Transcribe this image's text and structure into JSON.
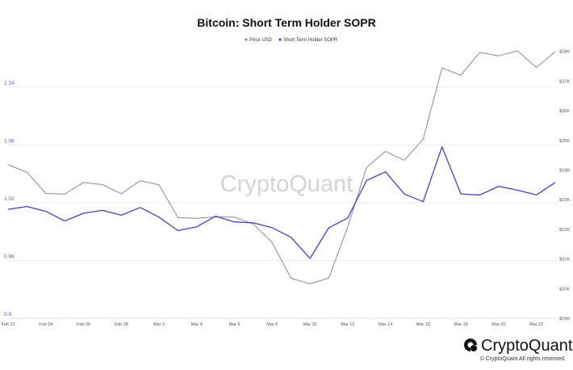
{
  "chart_data": {
    "type": "line",
    "title": "Bitcoin: Short Term Holder SOPR",
    "x_labels": [
      "Feb 22",
      "Feb 24",
      "Feb 26",
      "Feb 28",
      "Mar 2",
      "Mar 4",
      "Mar 6",
      "Mar 8",
      "Mar 10",
      "Mar 12",
      "Mar 14",
      "Mar 16",
      "Mar 18",
      "Mar 20",
      "Mar 22"
    ],
    "x": [
      "Feb 22",
      "Feb 23",
      "Feb 24",
      "Feb 25",
      "Feb 26",
      "Feb 27",
      "Feb 28",
      "Mar 1",
      "Mar 2",
      "Mar 3",
      "Mar 4",
      "Mar 5",
      "Mar 6",
      "Mar 7",
      "Mar 8",
      "Mar 9",
      "Mar 10",
      "Mar 11",
      "Mar 12",
      "Mar 13",
      "Mar 14",
      "Mar 15",
      "Mar 16",
      "Mar 17",
      "Mar 18",
      "Mar 19",
      "Mar 20",
      "Mar 21",
      "Mar 22",
      "Mar 23"
    ],
    "series": [
      {
        "name": "Price USD",
        "axis": "right",
        "color": "#8a8a8a",
        "values": [
          24180,
          23930,
          23210,
          23190,
          23580,
          23510,
          23200,
          23640,
          23500,
          22400,
          22370,
          22420,
          22410,
          22180,
          21550,
          20350,
          20160,
          20360,
          22080,
          24090,
          24630,
          24330,
          25040,
          27440,
          27200,
          27970,
          27850,
          28020,
          27460,
          27990
        ]
      },
      {
        "name": "Short Term Holder SOPR",
        "axis": "left",
        "color": "#4b3fc4",
        "values": [
          1.013,
          1.016,
          1.011,
          1.001,
          1.009,
          1.012,
          1.007,
          1.015,
          1.005,
          0.991,
          0.995,
          1.006,
          1.0,
          0.999,
          0.994,
          0.984,
          0.962,
          0.994,
          1.004,
          1.043,
          1.052,
          1.029,
          1.021,
          1.078,
          1.029,
          1.028,
          1.037,
          1.033,
          1.028,
          1.041
        ]
      }
    ],
    "left_axis": {
      "ticks": [
        "0.9",
        "0.96",
        "1.02",
        "1.08",
        "1.14"
      ],
      "ylim": [
        0.9,
        1.18
      ],
      "color": "#5b4fcf"
    },
    "right_axis": {
      "ticks": [
        "$19K",
        "$20K",
        "$21K",
        "$22K",
        "$23K",
        "$24K",
        "$25K",
        "$26K",
        "$27K",
        "$28K"
      ],
      "ylim": [
        19000,
        28100
      ]
    },
    "legend_position": "top-center",
    "grid": "horizontal"
  },
  "watermark": "CryptoQuant",
  "brand": {
    "name": "CryptoQuant",
    "copyright": "© CryptoQuant All rights reserved."
  }
}
